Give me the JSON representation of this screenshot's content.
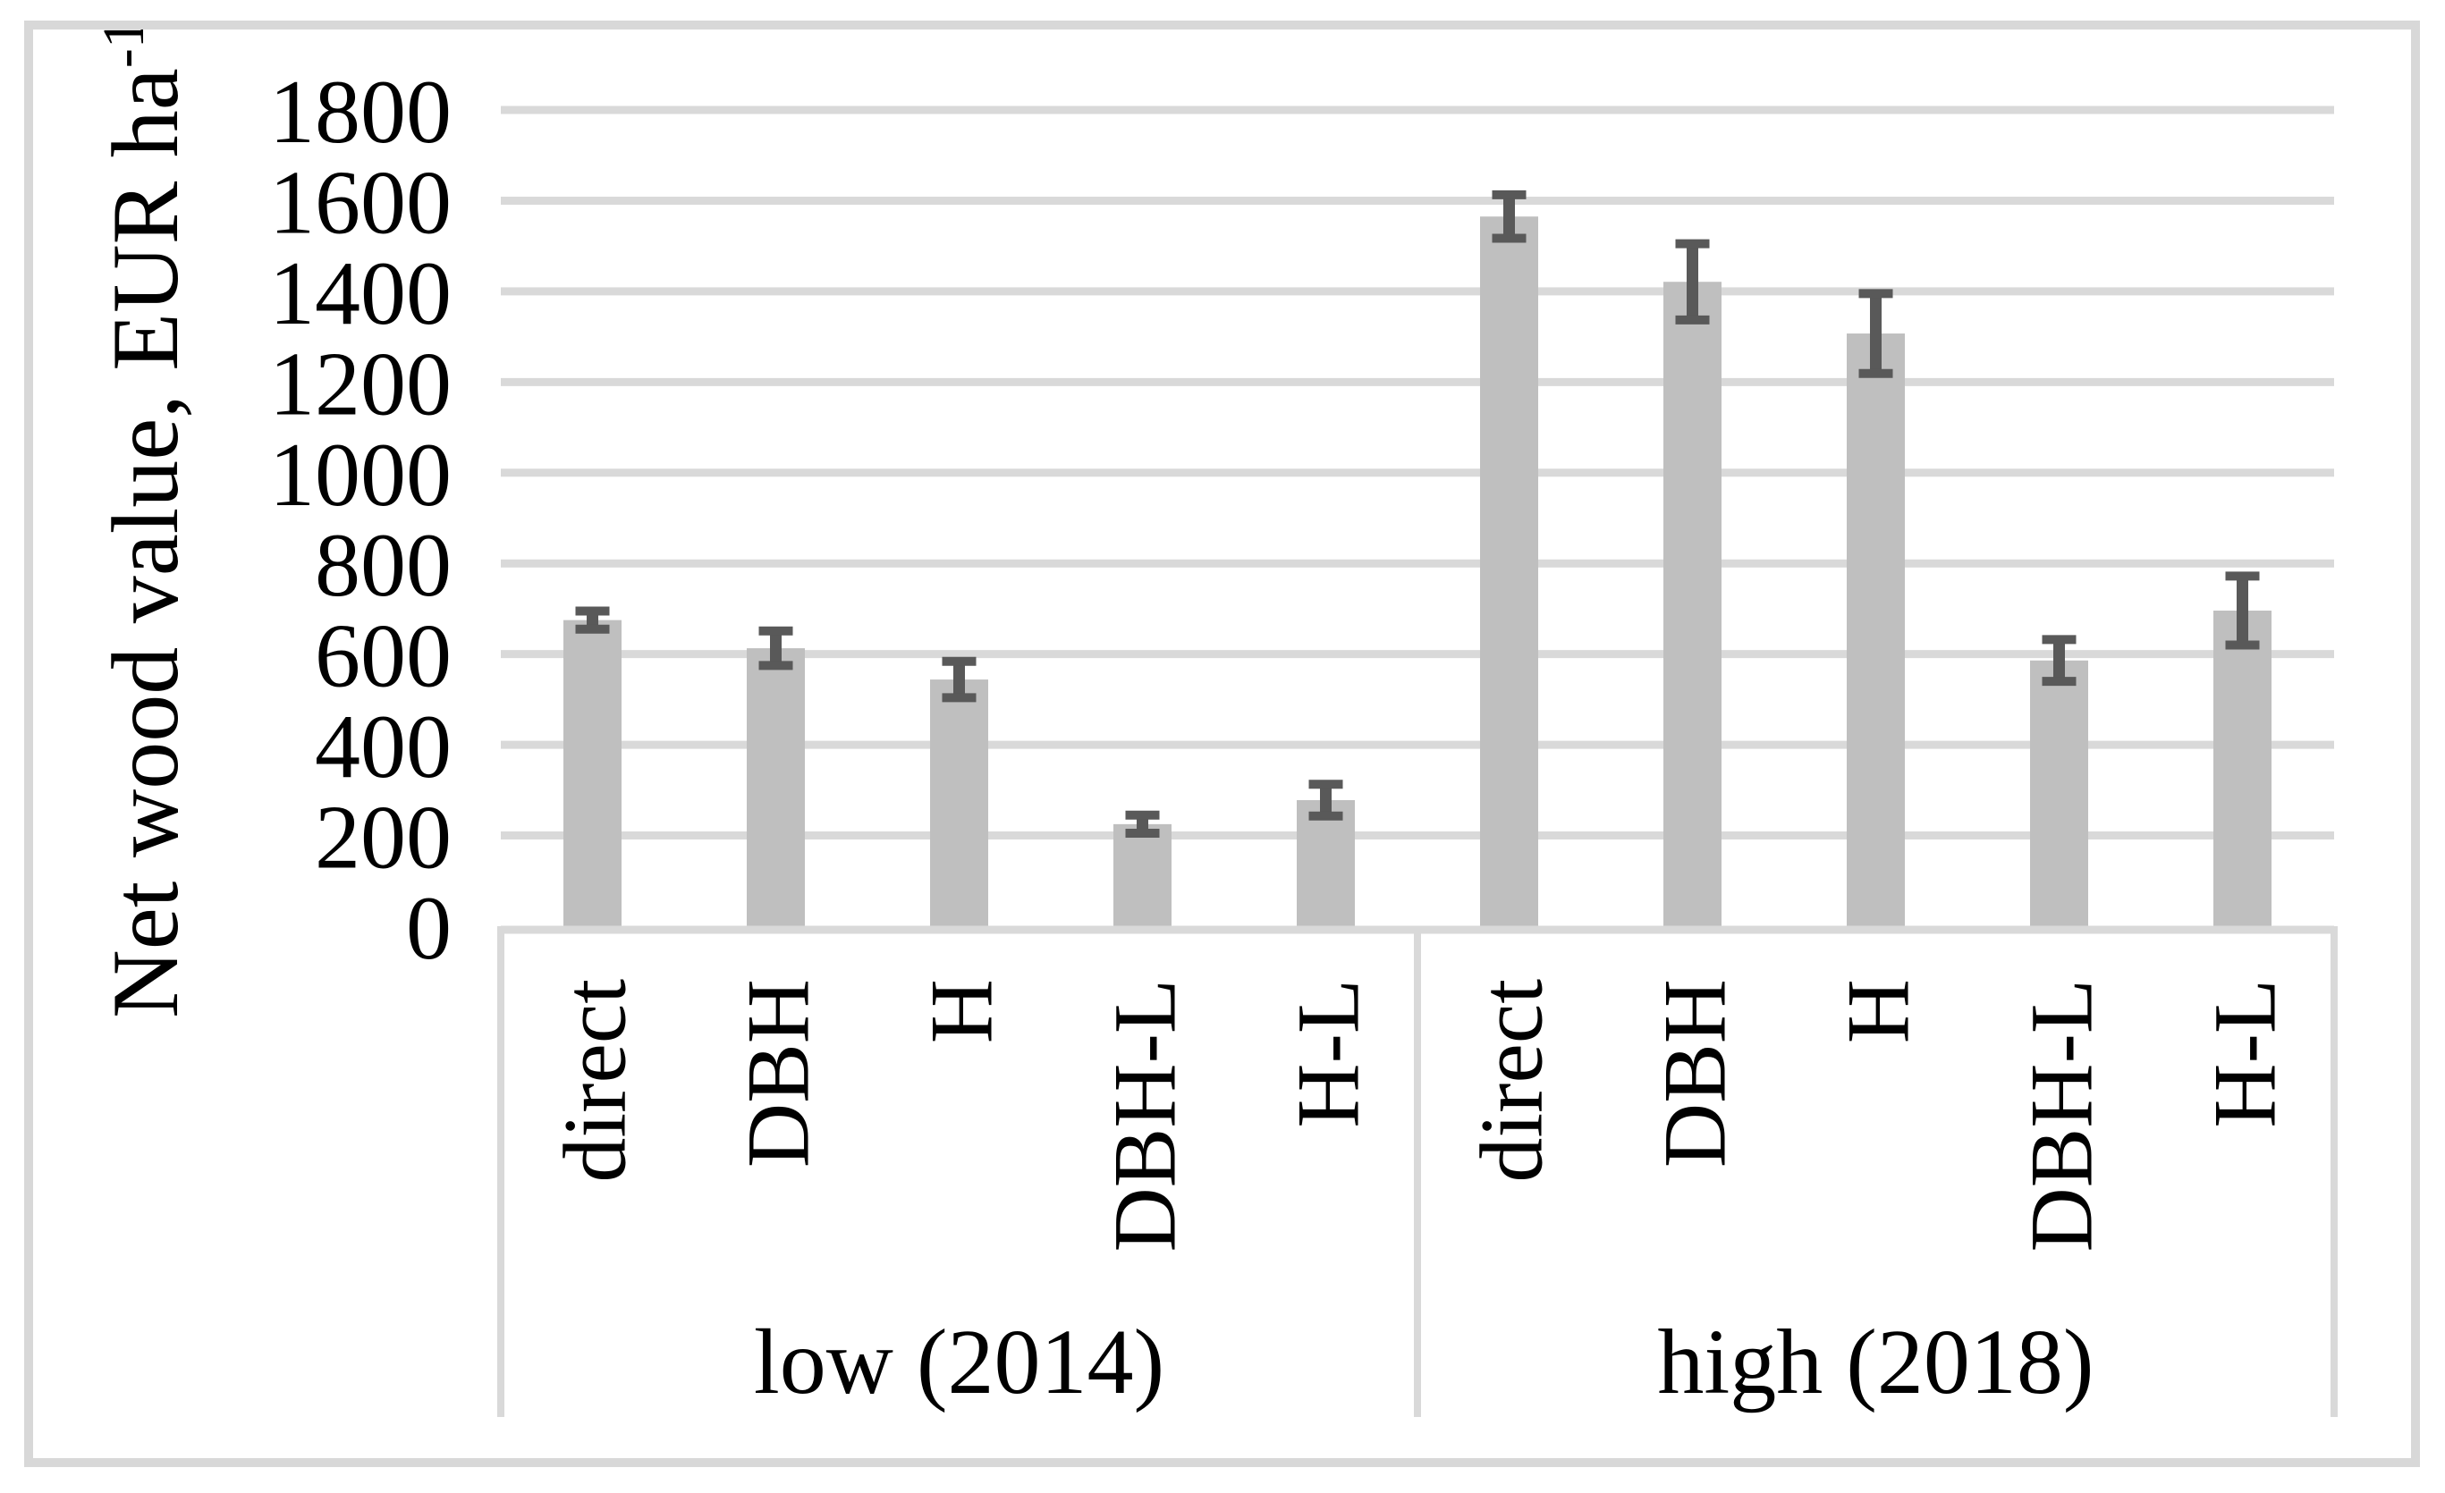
{
  "chart_data": {
    "type": "bar",
    "title": "",
    "ylabel": "Net wood value, EUR ha⁻¹",
    "ylabel_base": "Net wood value, EUR ha",
    "ylabel_superscript": "-1",
    "xlabel": "",
    "ylim": [
      0,
      1800
    ],
    "ytick_step": 200,
    "yticks": [
      0,
      200,
      400,
      600,
      800,
      1000,
      1200,
      1400,
      1600,
      1800
    ],
    "grid": true,
    "legend": false,
    "categories": [
      "direct",
      "DBH",
      "H",
      "DBH-L",
      "H-L"
    ],
    "groups": [
      {
        "label": "low (2014)",
        "values": [
          675,
          613,
          544,
          225,
          278
        ],
        "errors": [
          20,
          38,
          40,
          20,
          35
        ]
      },
      {
        "label": "high (2018)",
        "values": [
          1565,
          1421,
          1307,
          586,
          696
        ],
        "errors": [
          48,
          84,
          88,
          46,
          76
        ]
      }
    ],
    "colors": {
      "bar": "#bfbfbf",
      "error_bar": "#595959",
      "gridline": "#d9d9d9",
      "axis_line": "#d9d9d9",
      "border": "#d8d8d8",
      "text": "#000000",
      "background": "#ffffff"
    }
  }
}
